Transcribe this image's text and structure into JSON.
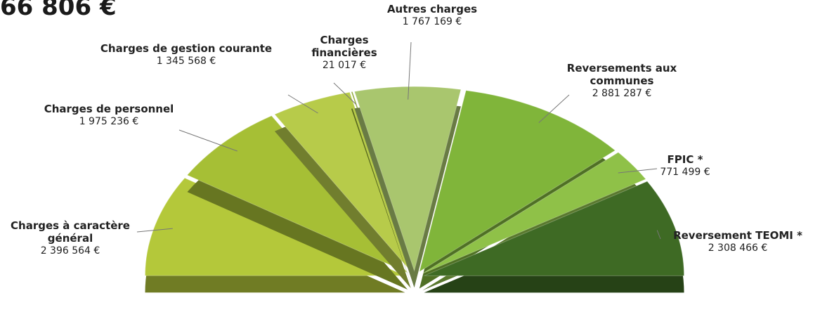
{
  "chart_data": {
    "type": "pie",
    "half": true,
    "title": "66 806 €",
    "categories": [
      "Charges à caractère général",
      "Charges de personnel",
      "Charges de gestion courante",
      "Charges financières",
      "Autres charges",
      "Reversements aux communes",
      "FPIC *",
      "Reversement TEOMI *"
    ],
    "values": [
      2396564,
      1975236,
      1345568,
      21017,
      1767169,
      2881287,
      771499,
      2308466
    ],
    "value_labels": [
      "2 396 564 €",
      "1 975 236 €",
      "1 345 568 €",
      "21 017 €",
      "1 767 169 €",
      "2 881 287 €",
      "771 499 €",
      "2 308 466 €"
    ],
    "colors": [
      "#b4c83a",
      "#a6bf35",
      "#b7cb4a",
      "#8aa52e",
      "#a9c66e",
      "#80b53a",
      "#8fc148",
      "#3e6a24"
    ]
  }
}
